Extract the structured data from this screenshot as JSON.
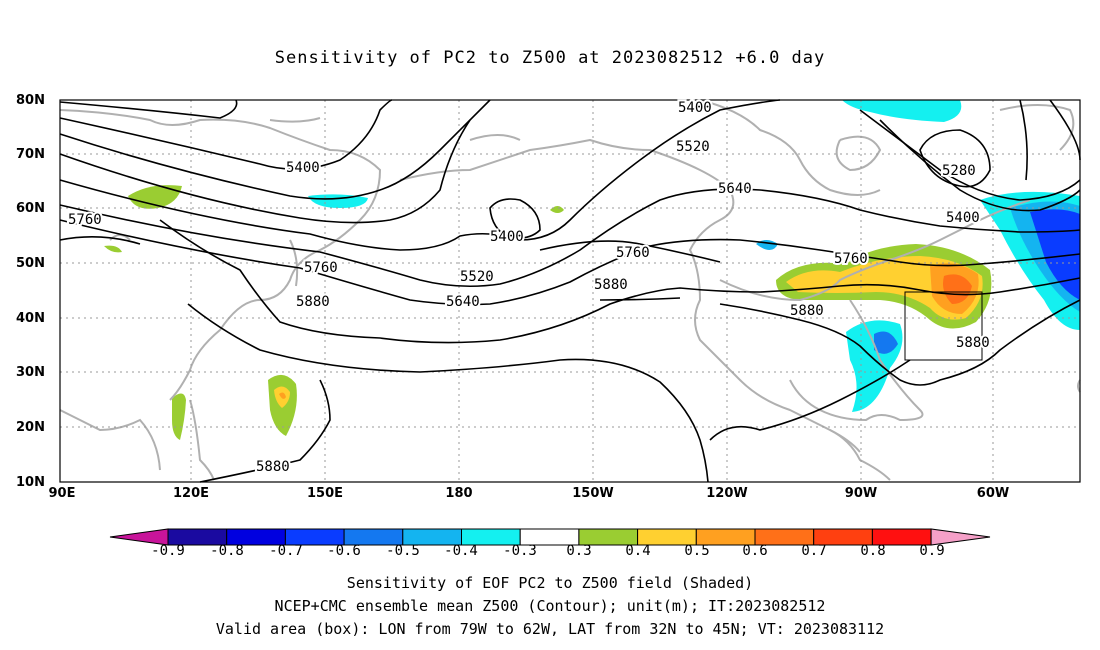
{
  "title": "Sensitivity of PC2 to Z500 at 2023082512 +6.0 day",
  "lat_labels": [
    "80N",
    "70N",
    "60N",
    "50N",
    "40N",
    "30N",
    "20N",
    "10N"
  ],
  "lon_labels": [
    "90E",
    "120E",
    "150E",
    "180",
    "150W",
    "120W",
    "90W",
    "60W"
  ],
  "contour_labels": [
    "5400",
    "5400",
    "5400",
    "5520",
    "5520",
    "5640",
    "5640",
    "5760",
    "5760",
    "5760",
    "5760",
    "5880",
    "5880",
    "5880",
    "5880",
    "5880",
    "5280",
    "5400"
  ],
  "colorbar": {
    "labels": [
      "-0.9",
      "-0.8",
      "-0.7",
      "-0.6",
      "-0.5",
      "-0.4",
      "-0.3",
      "0.3",
      "0.4",
      "0.5",
      "0.6",
      "0.7",
      "0.8",
      "0.9"
    ],
    "colors": [
      "#1a0aa0",
      "#0000e0",
      "#0a3cff",
      "#1478f0",
      "#14b4f0",
      "#14f0f0",
      "#ffffff",
      "#9acd32",
      "#ffd030",
      "#ffa020",
      "#ff7018",
      "#ff4010",
      "#ff1010"
    ],
    "left_end_color": "#c8149a",
    "right_end_color": "#f5a0c8"
  },
  "captions": [
    "Sensitivity of EOF PC2 to Z500 field (Shaded)",
    "NCEP+CMC ensemble mean Z500 (Contour); unit(m); IT:2023082512",
    "Valid area (box): LON from 79W to 62W, LAT from 32N to 45N; VT: 2023083112"
  ]
}
